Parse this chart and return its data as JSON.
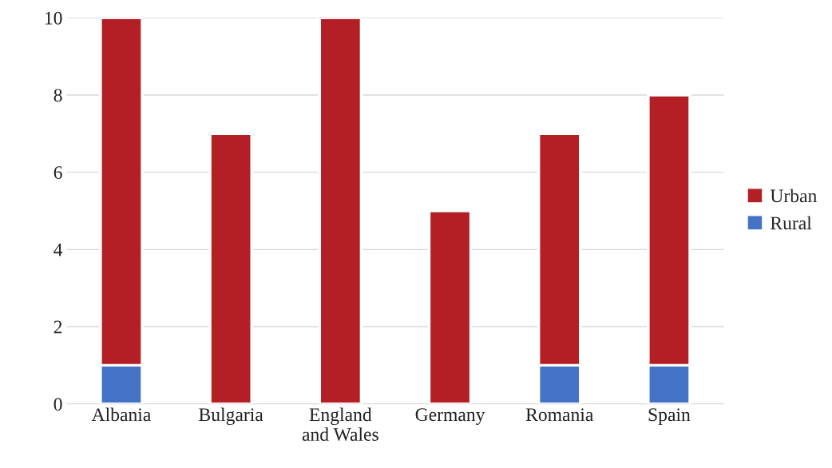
{
  "chart_data": {
    "type": "bar",
    "stacked": true,
    "categories": [
      "Albania",
      "Bulgaria",
      "England\nand Wales",
      "Germany",
      "Romania",
      "Spain"
    ],
    "series": [
      {
        "name": "Rural",
        "color": "#4472c4",
        "values": [
          1,
          0,
          0,
          0,
          1,
          1
        ]
      },
      {
        "name": "Urban",
        "color": "#b31f24",
        "values": [
          9,
          7,
          10,
          5,
          6,
          7
        ]
      }
    ],
    "ylim": [
      0,
      10
    ],
    "yticks": [
      0,
      2,
      4,
      6,
      8,
      10
    ],
    "grid": "y",
    "legend": "right"
  }
}
